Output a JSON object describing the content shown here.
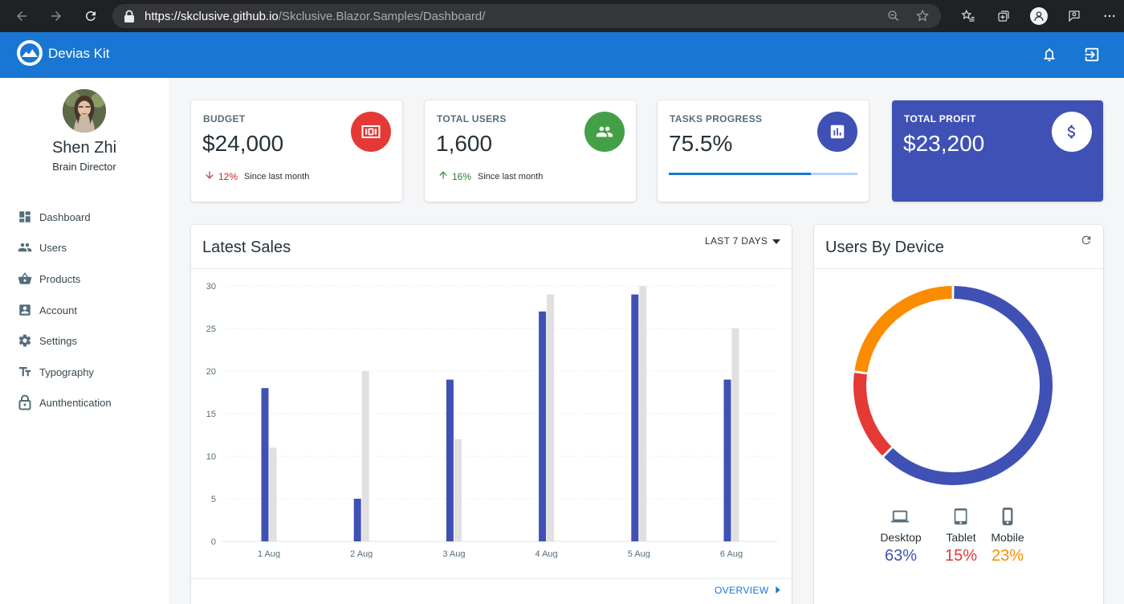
{
  "browser": {
    "url_host": "https://skclusive.github.io",
    "url_path": "/Skclusive.Blazor.Samples/Dashboard/"
  },
  "appbar": {
    "brand": "Devias Kit"
  },
  "profile": {
    "name": "Shen Zhi",
    "role": "Brain Director"
  },
  "nav": [
    {
      "label": "Dashboard",
      "icon": "dashboard-icon"
    },
    {
      "label": "Users",
      "icon": "users-icon"
    },
    {
      "label": "Products",
      "icon": "basket-icon"
    },
    {
      "label": "Account",
      "icon": "account-box-icon"
    },
    {
      "label": "Settings",
      "icon": "gear-icon"
    },
    {
      "label": "Typography",
      "icon": "text-fields-icon"
    },
    {
      "label": "Aunthentication",
      "icon": "lock-icon"
    }
  ],
  "stats": {
    "budget": {
      "label": "BUDGET",
      "value": "$24,000",
      "diff": "12%",
      "since": "Since last month",
      "icon": "money-icon",
      "color": "#e53935",
      "trend_color": "#c62828"
    },
    "users": {
      "label": "TOTAL USERS",
      "value": "1,600",
      "diff": "16%",
      "since": "Since last month",
      "icon": "people-icon",
      "color": "#43a047",
      "trend_color": "#2e7d32"
    },
    "tasks": {
      "label": "TASKS PROGRESS",
      "value": "75.5%",
      "progress": 75.5,
      "icon": "bar-chart-icon",
      "color": "#3f51b5"
    },
    "profit": {
      "label": "TOTAL PROFIT",
      "value": "$23,200",
      "icon": "dollar-icon",
      "color": "#3f51b5"
    }
  },
  "sales": {
    "title": "Latest Sales",
    "range_label": "LAST 7 DAYS",
    "overview_label": "OVERVIEW"
  },
  "chart_data": [
    {
      "type": "bar",
      "title": "Latest Sales",
      "categories": [
        "1 Aug",
        "2 Aug",
        "3 Aug",
        "4 Aug",
        "5 Aug",
        "6 Aug"
      ],
      "series": [
        {
          "values": [
            18,
            5,
            19,
            27,
            29,
            19
          ],
          "color": "#3f51b5"
        },
        {
          "values": [
            11,
            20,
            12,
            29,
            30,
            25
          ],
          "color": "#e0e0e0"
        }
      ],
      "ylim": [
        0,
        30
      ],
      "yticks": [
        0,
        5,
        10,
        15,
        20,
        25,
        30
      ],
      "grid": true
    },
    {
      "type": "pie",
      "title": "Users By Device",
      "labels": [
        "Desktop",
        "Tablet",
        "Mobile"
      ],
      "values": [
        63,
        15,
        23
      ],
      "display_values": [
        "63%",
        "15%",
        "23%"
      ],
      "colors": [
        "#3f51b5",
        "#e53935",
        "#fb8c00"
      ],
      "icons": [
        "laptop-icon",
        "tablet-icon",
        "phone-icon"
      ]
    }
  ]
}
